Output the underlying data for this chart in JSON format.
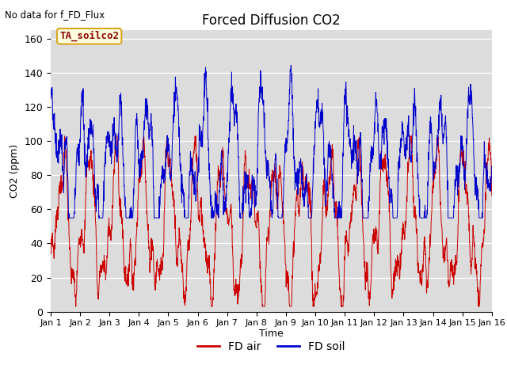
{
  "title": "Forced Diffusion CO2",
  "top_left_text": "No data for f_FD_Flux",
  "ylabel": "CO2 (ppm)",
  "xlabel": "Time",
  "xlim": [
    0,
    15
  ],
  "ylim": [
    0,
    165
  ],
  "yticks": [
    0,
    20,
    40,
    60,
    80,
    100,
    120,
    140,
    160
  ],
  "xtick_labels": [
    "Jan 1",
    "Jan 2",
    "Jan 3",
    "Jan 4",
    "Jan 5",
    "Jan 6",
    "Jan 7",
    "Jan 8",
    "Jan 9",
    "Jan 10",
    "Jan 11",
    "Jan 12",
    "Jan 13",
    "Jan 14",
    "Jan 15",
    "Jan 16"
  ],
  "legend_label_air": "FD air",
  "legend_label_soil": "FD soil",
  "annotation_label": "TA_soilco2",
  "color_air": "#CC0000",
  "color_soil": "#0000CC",
  "bg_color": "#DCDCDC",
  "n_points": 2000,
  "days": 15
}
